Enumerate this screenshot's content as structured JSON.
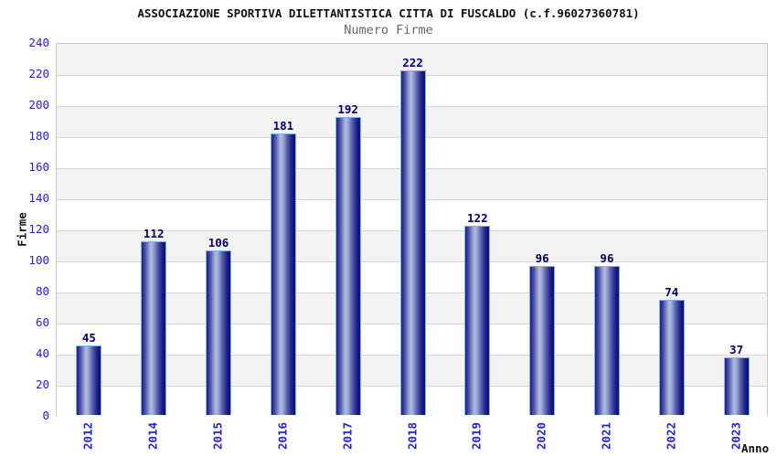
{
  "header": {
    "title": "ASSOCIAZIONE SPORTIVA DILETTANTISTICA CITTA DI FUSCALDO (c.f.96027360781)",
    "subtitle": "Numero Firme"
  },
  "chart_data": {
    "type": "bar",
    "title": "ASSOCIAZIONE SPORTIVA DILETTANTISTICA CITTA DI FUSCALDO (c.f.96027360781)",
    "subtitle": "Numero Firme",
    "categories": [
      "2012",
      "2014",
      "2015",
      "2016",
      "2017",
      "2018",
      "2019",
      "2020",
      "2021",
      "2022",
      "2023"
    ],
    "values": [
      45,
      112,
      106,
      181,
      192,
      222,
      122,
      96,
      96,
      74,
      37
    ],
    "xlabel": "Anno",
    "ylabel": "Firme",
    "ylim": [
      0,
      240
    ],
    "ytick_step": 20,
    "ytick_labels": [
      "0",
      "20",
      "40",
      "60",
      "80",
      "100",
      "120",
      "140",
      "160",
      "180",
      "200",
      "220",
      "240"
    ],
    "grid": true,
    "legend": "none",
    "colors": {
      "axis_text": "#2222cc",
      "value_label": "#000066",
      "title": "#111111",
      "subtitle": "#666666",
      "grid_line": "#d6d6d6",
      "plot_border": "#c9c9c9",
      "band_gray": "#f3f3f3",
      "band_white": "#ffffff",
      "bar_border": "#7fb2ec",
      "bar_gradient": [
        [
          "#1b1b86",
          0
        ],
        [
          "#4a52a4",
          15
        ],
        [
          "#98a2d2",
          32
        ],
        [
          "#b2bae2",
          40
        ],
        [
          "#98a2d2",
          50
        ],
        [
          "#5a64ae",
          65
        ],
        [
          "#262c90",
          82
        ],
        [
          "#111178",
          94
        ],
        [
          "#111178",
          100
        ]
      ]
    }
  }
}
